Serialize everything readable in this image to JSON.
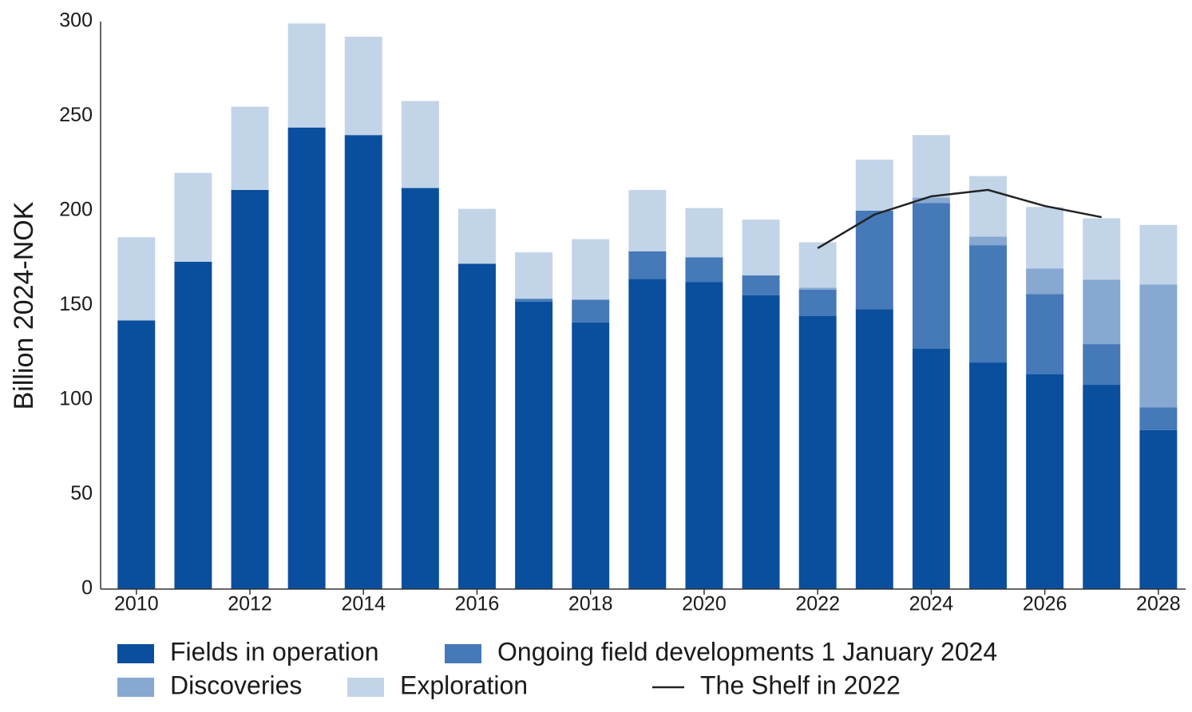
{
  "chart_data": {
    "type": "bar",
    "stacked": true,
    "y_label": "Billion 2024-NOK",
    "x": [
      2010,
      2011,
      2012,
      2013,
      2014,
      2015,
      2016,
      2017,
      2018,
      2019,
      2020,
      2021,
      2022,
      2023,
      2024,
      2025,
      2026,
      2027,
      2028
    ],
    "xlim": [
      2009.37,
      2028.48
    ],
    "xticks": [
      2010,
      2012,
      2014,
      2016,
      2018,
      2020,
      2022,
      2024,
      2026,
      2028
    ],
    "ylim": [
      0,
      300
    ],
    "yticks": [
      0,
      50,
      100,
      150,
      200,
      250,
      300
    ],
    "grid": false,
    "legend": "bottom",
    "series": [
      {
        "name": "Fields in operation",
        "color": "#0a4f9e",
        "values": [
          142,
          173,
          211,
          244,
          240,
          212,
          172,
          152,
          141,
          164,
          162.4,
          155.3,
          144.3,
          148,
          127,
          119.8,
          113.5,
          108,
          84
        ]
      },
      {
        "name": "Ongoing field developments 1 January 2024",
        "color": "#4579b8",
        "values": [
          null,
          null,
          null,
          null,
          null,
          null,
          null,
          1.5,
          12,
          14.5,
          13,
          10.5,
          14,
          52,
          77,
          62,
          42.5,
          21.5,
          12
        ]
      },
      {
        "name": "Discoveries",
        "color": "#86a8d1",
        "values": [
          null,
          null,
          null,
          null,
          null,
          null,
          null,
          null,
          null,
          null,
          null,
          null,
          1,
          null,
          3,
          4.5,
          13.5,
          34,
          65
        ]
      },
      {
        "name": "Exploration",
        "color": "#c2d4e8",
        "values": [
          44,
          47,
          44,
          55,
          52,
          46,
          29,
          24.5,
          32,
          32.5,
          26,
          29.5,
          24,
          27,
          33,
          32,
          32.5,
          32.5,
          31.5
        ]
      },
      {
        "name": "The Shelf in 2022",
        "type": "line",
        "color": "#222222",
        "values": [
          null,
          null,
          null,
          null,
          null,
          null,
          null,
          null,
          null,
          null,
          null,
          null,
          180.2,
          198,
          207.6,
          211,
          202.5,
          196.6,
          null
        ]
      }
    ]
  }
}
